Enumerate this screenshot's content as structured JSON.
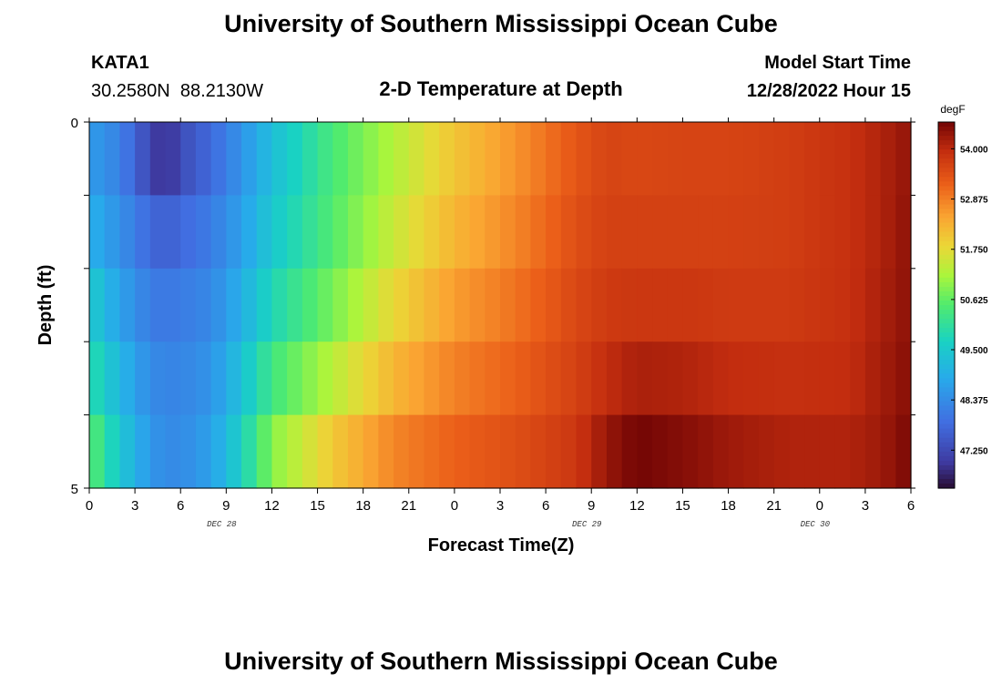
{
  "title": "University of Southern Mississippi Ocean Cube",
  "station": {
    "id": "KATA1",
    "coords": "30.2580N  88.2130W"
  },
  "plot_title": "2-D Temperature at Depth",
  "model_start": {
    "label": "Model Start Time",
    "value": "12/28/2022 Hour 15"
  },
  "footer_title": "University of Southern Mississippi Ocean Cube",
  "chart_data": {
    "type": "heatmap",
    "title": "2-D Temperature at Depth",
    "xlabel": "Forecast Time(Z)",
    "ylabel": "Depth (ft)",
    "x_unit": "hours since 2022-12-28 00Z",
    "x_tick_labels": [
      "0",
      "3",
      "6",
      "9",
      "12",
      "15",
      "18",
      "21",
      "0",
      "3",
      "6",
      "9",
      "12",
      "15",
      "18",
      "21",
      "0",
      "3",
      "6"
    ],
    "x_date_labels": [
      "DEC 28",
      "DEC 29",
      "DEC 30"
    ],
    "y_tick_labels": [
      "0",
      "5"
    ],
    "ylim": [
      0,
      5
    ],
    "xlim": [
      0,
      54
    ],
    "depth_layers_ft": [
      0,
      1,
      2,
      3,
      4,
      5
    ],
    "colorbar": {
      "unit": "degF",
      "tick_labels": [
        "54.000",
        "52.875",
        "51.750",
        "50.625",
        "49.500",
        "48.375",
        "47.250"
      ],
      "ticks": [
        54.0,
        52.875,
        51.75,
        50.625,
        49.5,
        48.375,
        47.25
      ],
      "range": [
        46.4,
        54.6
      ]
    },
    "time_hours": [
      0,
      2,
      4,
      5,
      6,
      8,
      10,
      12,
      16,
      20,
      24,
      28,
      32,
      34,
      36,
      39,
      42,
      46,
      50,
      52,
      54
    ],
    "temperature_degF": [
      [
        48.6,
        48.1,
        46.8,
        46.2,
        47.0,
        47.6,
        48.4,
        49.2,
        50.4,
        51.2,
        52.0,
        52.6,
        53.3,
        53.6,
        53.5,
        53.6,
        53.6,
        53.7,
        53.9,
        54.1,
        54.3
      ],
      [
        48.7,
        48.3,
        47.6,
        47.3,
        47.6,
        48.0,
        48.6,
        49.3,
        50.4,
        51.3,
        52.1,
        52.7,
        53.4,
        53.6,
        53.6,
        53.6,
        53.6,
        53.7,
        53.9,
        54.1,
        54.4
      ],
      [
        49.3,
        48.6,
        48.0,
        47.9,
        48.0,
        48.2,
        48.8,
        49.6,
        50.6,
        51.6,
        52.4,
        52.9,
        53.5,
        53.7,
        53.7,
        53.7,
        53.7,
        53.7,
        53.9,
        54.1,
        54.4
      ],
      [
        49.8,
        48.9,
        48.2,
        48.2,
        48.2,
        48.4,
        49.1,
        50.0,
        51.0,
        52.0,
        52.7,
        53.1,
        53.6,
        53.8,
        53.9,
        53.9,
        53.8,
        53.8,
        53.9,
        54.2,
        54.4
      ],
      [
        50.2,
        49.3,
        48.5,
        48.3,
        48.3,
        48.6,
        49.5,
        50.6,
        51.6,
        52.5,
        53.0,
        53.3,
        53.7,
        54.1,
        54.4,
        54.3,
        54.1,
        54.0,
        54.0,
        54.2,
        54.5
      ],
      [
        51.0,
        49.6,
        48.6,
        48.4,
        48.4,
        48.8,
        49.8,
        51.2,
        52.4,
        53.1,
        53.4,
        53.6,
        53.9,
        54.5,
        54.8,
        54.6,
        54.4,
        54.2,
        54.2,
        54.3,
        54.6
      ]
    ]
  }
}
